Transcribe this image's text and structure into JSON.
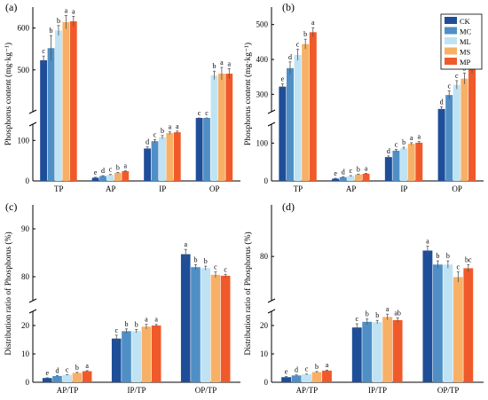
{
  "figure": {
    "legend": [
      {
        "key": "CK",
        "color": "#1f4e99"
      },
      {
        "key": "MC",
        "color": "#4f8fc6"
      },
      {
        "key": "ML",
        "color": "#bfe3f3"
      },
      {
        "key": "MS",
        "color": "#f7b066"
      },
      {
        "key": "MP",
        "color": "#f05a2a"
      }
    ]
  },
  "chart_data": [
    {
      "panel": "(a)",
      "type": "bar",
      "ylabel": "Phosphorus content (mg·kg⁻¹)",
      "axis_break": {
        "lower": [
          0,
          140
        ],
        "upper": [
          400,
          650
        ]
      },
      "lower_ticks": [
        0,
        100
      ],
      "upper_ticks": [
        500,
        600
      ],
      "categories": [
        "TP",
        "AP",
        "IP",
        "OP"
      ],
      "series": [
        {
          "name": "CK",
          "values": [
            523,
            8,
            80,
            341
          ],
          "errors": [
            10,
            1,
            4,
            8
          ],
          "letters": [
            "c",
            "e",
            "d",
            "c"
          ]
        },
        {
          "name": "MC",
          "values": [
            552,
            12,
            98,
            350
          ],
          "errors": [
            30,
            1,
            4,
            10
          ],
          "letters": [
            "b",
            "d",
            "c",
            "c"
          ]
        },
        {
          "name": "ML",
          "values": [
            594,
            15,
            108,
            487
          ],
          "errors": [
            12,
            1,
            4,
            10
          ],
          "letters": [
            "b",
            "c",
            "b",
            "b"
          ]
        },
        {
          "name": "MS",
          "values": [
            614,
            20,
            118,
            491
          ],
          "errors": [
            16,
            1,
            3,
            15
          ],
          "letters": [
            "a",
            "b",
            "a",
            "a"
          ]
        },
        {
          "name": "MP",
          "values": [
            616,
            24,
            120,
            491
          ],
          "errors": [
            12,
            1,
            3,
            12
          ],
          "letters": [
            "a",
            "a",
            "a",
            "a"
          ]
        }
      ]
    },
    {
      "panel": "(b)",
      "type": "bar",
      "ylabel": "Phosphorus content (mg·kg⁻¹)",
      "axis_break": {
        "lower": [
          0,
          150
        ],
        "upper": [
          250,
          550
        ]
      },
      "lower_ticks": [
        0,
        100
      ],
      "upper_ticks": [
        300,
        400,
        500
      ],
      "categories": [
        "TP",
        "AP",
        "IP",
        "OP"
      ],
      "series": [
        {
          "name": "CK",
          "values": [
            322,
            6,
            63,
            258
          ],
          "errors": [
            8,
            1,
            3,
            6
          ],
          "letters": [
            "e",
            "e",
            "d",
            "d"
          ]
        },
        {
          "name": "MC",
          "values": [
            375,
            10,
            80,
            298
          ],
          "errors": [
            18,
            1,
            3,
            12
          ],
          "letters": [
            "d",
            "d",
            "c",
            "c"
          ]
        },
        {
          "name": "ML",
          "values": [
            413,
            13,
            86,
            327
          ],
          "errors": [
            16,
            1,
            3,
            12
          ],
          "letters": [
            "c",
            "c",
            "b",
            "c"
          ]
        },
        {
          "name": "MS",
          "values": [
            444,
            17,
            98,
            345
          ],
          "errors": [
            14,
            1,
            3,
            16
          ],
          "letters": [
            "b",
            "b",
            "a",
            "b"
          ]
        },
        {
          "name": "MP",
          "values": [
            478,
            19,
            101,
            375
          ],
          "errors": [
            13,
            1,
            3,
            15
          ],
          "letters": [
            "a",
            "a",
            "a",
            "a"
          ]
        }
      ]
    },
    {
      "panel": "(c)",
      "type": "bar",
      "ylabel": "Distribution ratio of Phosphorus (%)",
      "axis_break": {
        "lower": [
          0,
          25
        ],
        "upper": [
          75,
          95
        ]
      },
      "lower_ticks": [
        0,
        10,
        20
      ],
      "upper_ticks": [
        80,
        90
      ],
      "categories": [
        "AP/TP",
        "IP/TP",
        "OP/TP"
      ],
      "series": [
        {
          "name": "CK",
          "values": [
            1.5,
            15.4,
            84.7
          ],
          "errors": [
            0.1,
            1.2,
            1.0
          ],
          "letters": [
            "e",
            "c",
            "a"
          ]
        },
        {
          "name": "MC",
          "values": [
            2.2,
            18.0,
            82.0
          ],
          "errors": [
            0.2,
            0.8,
            0.5
          ],
          "letters": [
            "d",
            "b",
            "b"
          ]
        },
        {
          "name": "ML",
          "values": [
            2.6,
            18.0,
            81.8
          ],
          "errors": [
            0.1,
            0.6,
            0.4
          ],
          "letters": [
            "c",
            "b",
            "b"
          ]
        },
        {
          "name": "MS",
          "values": [
            3.3,
            19.6,
            80.4
          ],
          "errors": [
            0.2,
            0.8,
            0.6
          ],
          "letters": [
            "b",
            "a",
            "c"
          ]
        },
        {
          "name": "MP",
          "values": [
            3.9,
            20.0,
            80.2
          ],
          "errors": [
            0.2,
            0.4,
            0.3
          ],
          "letters": [
            "a",
            "a",
            "c"
          ]
        }
      ]
    },
    {
      "panel": "(d)",
      "type": "bar",
      "ylabel": "Distribution ratio of Phosphorus (%)",
      "axis_break": {
        "lower": [
          0,
          25
        ],
        "upper": [
          74,
          87
        ]
      },
      "lower_ticks": [
        0,
        10,
        20
      ],
      "upper_ticks": [
        80
      ],
      "categories": [
        "AP/TP",
        "IP/TP",
        "OP/TP"
      ],
      "series": [
        {
          "name": "CK",
          "values": [
            1.8,
            19.3,
            80.8
          ],
          "errors": [
            0.2,
            1.3,
            0.6
          ],
          "letters": [
            "e",
            "c",
            "a"
          ]
        },
        {
          "name": "MC",
          "values": [
            2.4,
            21.3,
            78.9
          ],
          "errors": [
            0.2,
            1.0,
            0.5
          ],
          "letters": [
            "d",
            "b",
            "b"
          ]
        },
        {
          "name": "ML",
          "values": [
            2.8,
            21.2,
            78.9
          ],
          "errors": [
            0.1,
            0.6,
            0.5
          ],
          "letters": [
            "c",
            "b",
            "b"
          ]
        },
        {
          "name": "MS",
          "values": [
            3.6,
            23.0,
            77.2
          ],
          "errors": [
            0.2,
            1.0,
            0.7
          ],
          "letters": [
            "b",
            "a",
            "c"
          ]
        },
        {
          "name": "MP",
          "values": [
            4.1,
            21.9,
            78.4
          ],
          "errors": [
            0.2,
            0.8,
            0.5
          ],
          "letters": [
            "a",
            "ab",
            "bc"
          ]
        }
      ]
    }
  ]
}
